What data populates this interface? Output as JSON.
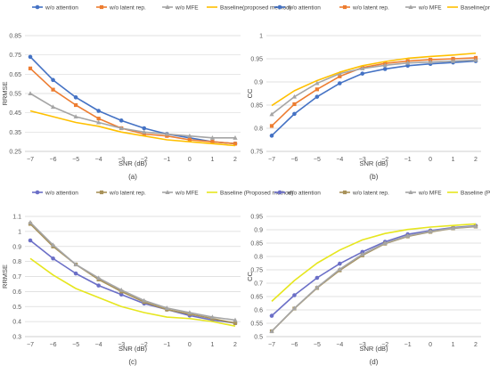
{
  "chart_data": [
    {
      "type": "line",
      "label": "(a)",
      "xlabel": "SNR (dB)",
      "ylabel": "RRMSE",
      "x": [
        -7,
        -6,
        -5,
        -4,
        -3,
        -2,
        -1,
        0,
        1,
        2
      ],
      "ylim": [
        0.25,
        0.85
      ],
      "yticks": [
        0.25,
        0.35,
        0.45,
        0.55,
        0.65,
        0.75,
        0.85
      ],
      "grid": "horizontal",
      "legend": "top",
      "series": [
        {
          "name": "w/o attention",
          "color": "#4472c4",
          "marker": "circle",
          "values": [
            0.74,
            0.62,
            0.53,
            0.46,
            0.41,
            0.37,
            0.34,
            0.32,
            0.3,
            0.29
          ]
        },
        {
          "name": "w/o latent rep.",
          "color": "#ed7d31",
          "marker": "square",
          "values": [
            0.68,
            0.57,
            0.49,
            0.42,
            0.37,
            0.34,
            0.33,
            0.31,
            0.3,
            0.29
          ]
        },
        {
          "name": "w/o MFE",
          "color": "#a5a5a5",
          "marker": "triangle",
          "values": [
            0.55,
            0.48,
            0.43,
            0.4,
            0.37,
            0.35,
            0.34,
            0.33,
            0.32,
            0.32
          ]
        },
        {
          "name": "Baseline(proposed method)",
          "color": "#ffc000",
          "marker": "none",
          "values": [
            0.46,
            0.43,
            0.4,
            0.38,
            0.35,
            0.33,
            0.31,
            0.3,
            0.29,
            0.28
          ]
        }
      ]
    },
    {
      "type": "line",
      "label": "(b)",
      "xlabel": "SNR (dB)",
      "ylabel": "CC",
      "x": [
        -7,
        -6,
        -5,
        -4,
        -3,
        -2,
        -1,
        0,
        1,
        2
      ],
      "ylim": [
        0.75,
        1.0
      ],
      "yticks": [
        0.75,
        0.8,
        0.85,
        0.9,
        0.95,
        1
      ],
      "grid": "horizontal",
      "legend": "top",
      "series": [
        {
          "name": "w/o attention",
          "color": "#4472c4",
          "marker": "circle",
          "values": [
            0.784,
            0.831,
            0.868,
            0.897,
            0.918,
            0.928,
            0.935,
            0.939,
            0.942,
            0.945
          ]
        },
        {
          "name": "w/o latent rep.",
          "color": "#ed7d31",
          "marker": "square",
          "values": [
            0.805,
            0.852,
            0.884,
            0.912,
            0.931,
            0.94,
            0.945,
            0.948,
            0.95,
            0.952
          ]
        },
        {
          "name": "w/o MFE",
          "color": "#a5a5a5",
          "marker": "triangle",
          "values": [
            0.83,
            0.868,
            0.897,
            0.918,
            0.929,
            0.936,
            0.941,
            0.943,
            0.945,
            0.947
          ]
        },
        {
          "name": "Baseline(proposed method)",
          "color": "#ffc000",
          "marker": "none",
          "values": [
            0.849,
            0.881,
            0.903,
            0.921,
            0.935,
            0.944,
            0.951,
            0.955,
            0.958,
            0.962
          ]
        }
      ]
    },
    {
      "type": "line",
      "label": "(c)",
      "xlabel": "SNR (dB)",
      "ylabel": "RRMSE",
      "x": [
        -7,
        -6,
        -5,
        -4,
        -3,
        -2,
        -1,
        0,
        1,
        2
      ],
      "ylim": [
        0.3,
        1.1
      ],
      "yticks": [
        0.3,
        0.4,
        0.5,
        0.6,
        0.7,
        0.8,
        0.9,
        1,
        1.1
      ],
      "grid": "horizontal",
      "legend": "top",
      "series": [
        {
          "name": "w/o attention",
          "color": "#6b6fc7",
          "marker": "circle",
          "values": [
            0.94,
            0.82,
            0.72,
            0.64,
            0.58,
            0.52,
            0.48,
            0.44,
            0.41,
            0.39
          ]
        },
        {
          "name": "w/o latent rep.",
          "color": "#a8925a",
          "marker": "square",
          "values": [
            1.05,
            0.9,
            0.78,
            0.68,
            0.6,
            0.53,
            0.48,
            0.45,
            0.42,
            0.39
          ]
        },
        {
          "name": "w/o MFE",
          "color": "#a5a5a5",
          "marker": "triangle",
          "values": [
            1.06,
            0.91,
            0.78,
            0.69,
            0.61,
            0.54,
            0.49,
            0.46,
            0.43,
            0.41
          ]
        },
        {
          "name": "Baseline (Proposed method)",
          "color": "#e6e61e",
          "marker": "none",
          "values": [
            0.82,
            0.71,
            0.62,
            0.56,
            0.5,
            0.46,
            0.43,
            0.42,
            0.4,
            0.37
          ]
        }
      ]
    },
    {
      "type": "line",
      "label": "(d)",
      "xlabel": "SNR (dB)",
      "ylabel": "CC",
      "x": [
        -7,
        -6,
        -5,
        -4,
        -3,
        -2,
        -1,
        0,
        1,
        2
      ],
      "ylim": [
        0.5,
        0.95
      ],
      "yticks": [
        0.5,
        0.55,
        0.6,
        0.65,
        0.7,
        0.75,
        0.8,
        0.85,
        0.9,
        0.95
      ],
      "grid": "horizontal",
      "legend": "top",
      "series": [
        {
          "name": "w/o attention",
          "color": "#6b6fc7",
          "marker": "circle",
          "values": [
            0.578,
            0.655,
            0.72,
            0.773,
            0.817,
            0.855,
            0.883,
            0.897,
            0.908,
            0.915
          ]
        },
        {
          "name": "w/o latent rep.",
          "color": "#a8925a",
          "marker": "square",
          "values": [
            0.52,
            0.605,
            0.682,
            0.748,
            0.804,
            0.848,
            0.875,
            0.892,
            0.905,
            0.912
          ]
        },
        {
          "name": "w/o MFE",
          "color": "#a5a5a5",
          "marker": "triangle",
          "values": [
            0.52,
            0.606,
            0.684,
            0.752,
            0.808,
            0.85,
            0.877,
            0.894,
            0.906,
            0.913
          ]
        },
        {
          "name": "Baseline (Proposed method)",
          "color": "#e6e61e",
          "marker": "none",
          "values": [
            0.632,
            0.71,
            0.775,
            0.824,
            0.862,
            0.886,
            0.901,
            0.91,
            0.916,
            0.922
          ]
        }
      ]
    }
  ]
}
